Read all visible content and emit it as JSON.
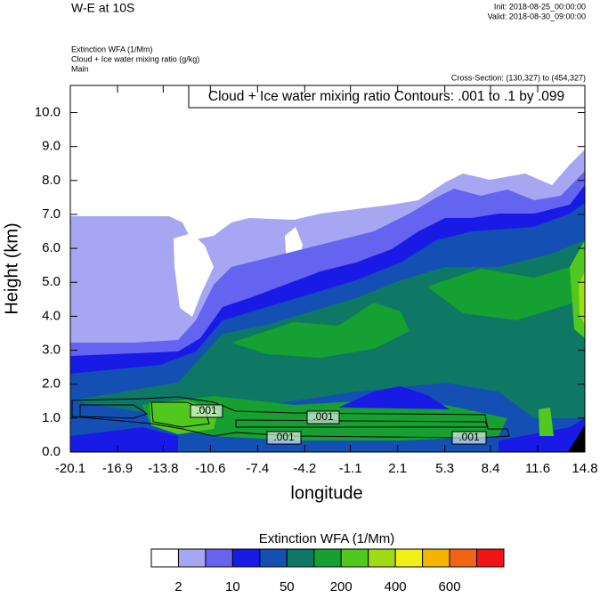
{
  "chart_data": {
    "type": "contour",
    "title": "W-E at 10S",
    "init": "Init: 2018-08-25_00:00:00",
    "valid": "Valid: 2018-08-30_09:00:00",
    "field_title": "Extinction WFA   (1/Mm)",
    "contour_title": "Cloud + Ice water mixing ratio   (g/kg)",
    "run": "Main",
    "cross_section": "Cross-Section: (130,327) to (454,327)",
    "contour_info": "Cloud + Ice water mixing ratio Contours: .001 to .1 by .099",
    "contour_labels": [
      ".001",
      ".001",
      ".001",
      ".001"
    ],
    "xlabel": "longitude",
    "ylabel": "Height (km)",
    "xlim": [
      -20.1,
      14.8
    ],
    "xticks": [
      -20.1,
      -16.9,
      -13.8,
      -10.6,
      -7.4,
      -4.2,
      -1.1,
      2.1,
      5.3,
      8.4,
      11.6,
      14.8
    ],
    "ylim": [
      0,
      10.8
    ],
    "yticks": [
      {
        "value": 0,
        "label": "0.0"
      },
      {
        "value": 1,
        "label": "1.0"
      },
      {
        "value": 2,
        "label": "2.0"
      },
      {
        "value": 3,
        "label": "3.0"
      },
      {
        "value": 4,
        "label": "4.0"
      },
      {
        "value": 5,
        "label": "5.0"
      },
      {
        "value": 6,
        "label": "6.0"
      },
      {
        "value": 7,
        "label": "7.0"
      },
      {
        "value": 8,
        "label": "8.0"
      },
      {
        "value": 9,
        "label": "9.0"
      },
      {
        "value": 10,
        "label": "10.0"
      }
    ],
    "colorbar": {
      "title": "Extinction WFA  (1/Mm)",
      "colors": [
        "#ffffff",
        "#a6a6f2",
        "#6464f0",
        "#1a1ae6",
        "#1450b4",
        "#0f7864",
        "#16a032",
        "#50c81e",
        "#a0dc14",
        "#f0f014",
        "#f5b400",
        "#f06414",
        "#f01414"
      ],
      "labels": [
        2,
        10,
        50,
        200,
        400,
        600
      ]
    }
  }
}
